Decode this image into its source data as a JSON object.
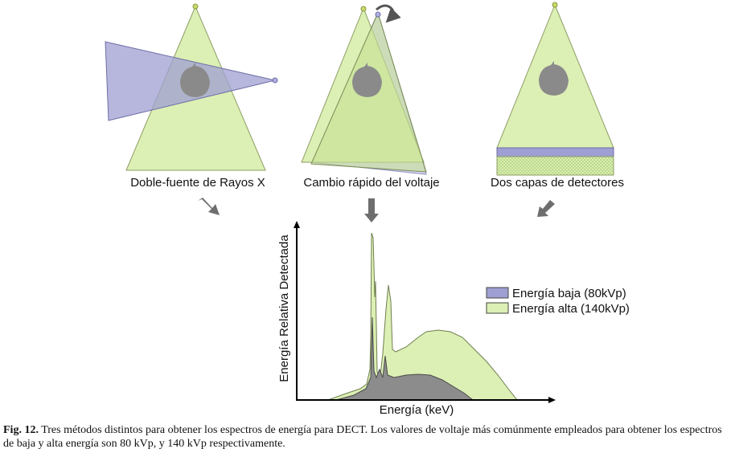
{
  "methods": [
    {
      "label": "Doble-fuente de Rayos X"
    },
    {
      "label": "Cambio rápido del voltaje"
    },
    {
      "label": "Dos capas de detectores"
    }
  ],
  "spectrum": {
    "ylabel": "Energía Relativa Detectada",
    "xlabel": "Energía (keV)",
    "legend": [
      {
        "label": "Energía baja (80kVp)",
        "color": "#9f9fd3"
      },
      {
        "label": "Energía alta (140kVp)",
        "color": "#dcefb4"
      }
    ]
  },
  "colors": {
    "high_energy_fill": "#dcefb4",
    "low_energy_fill": "#9f9fd3",
    "overlap_fill": "#8c8c8c",
    "beam_stroke": "#7a8a55",
    "arrow": "#6e6e6e"
  },
  "caption": {
    "label": "Fig. 12.",
    "text": " Tres métodos distintos para obtener los espectros de energía para DECT. Los valores de voltaje más comúnmente empleados para obtener los espectros de baja y alta energía son 80 kVp, y 140 kVp respectivamente."
  }
}
